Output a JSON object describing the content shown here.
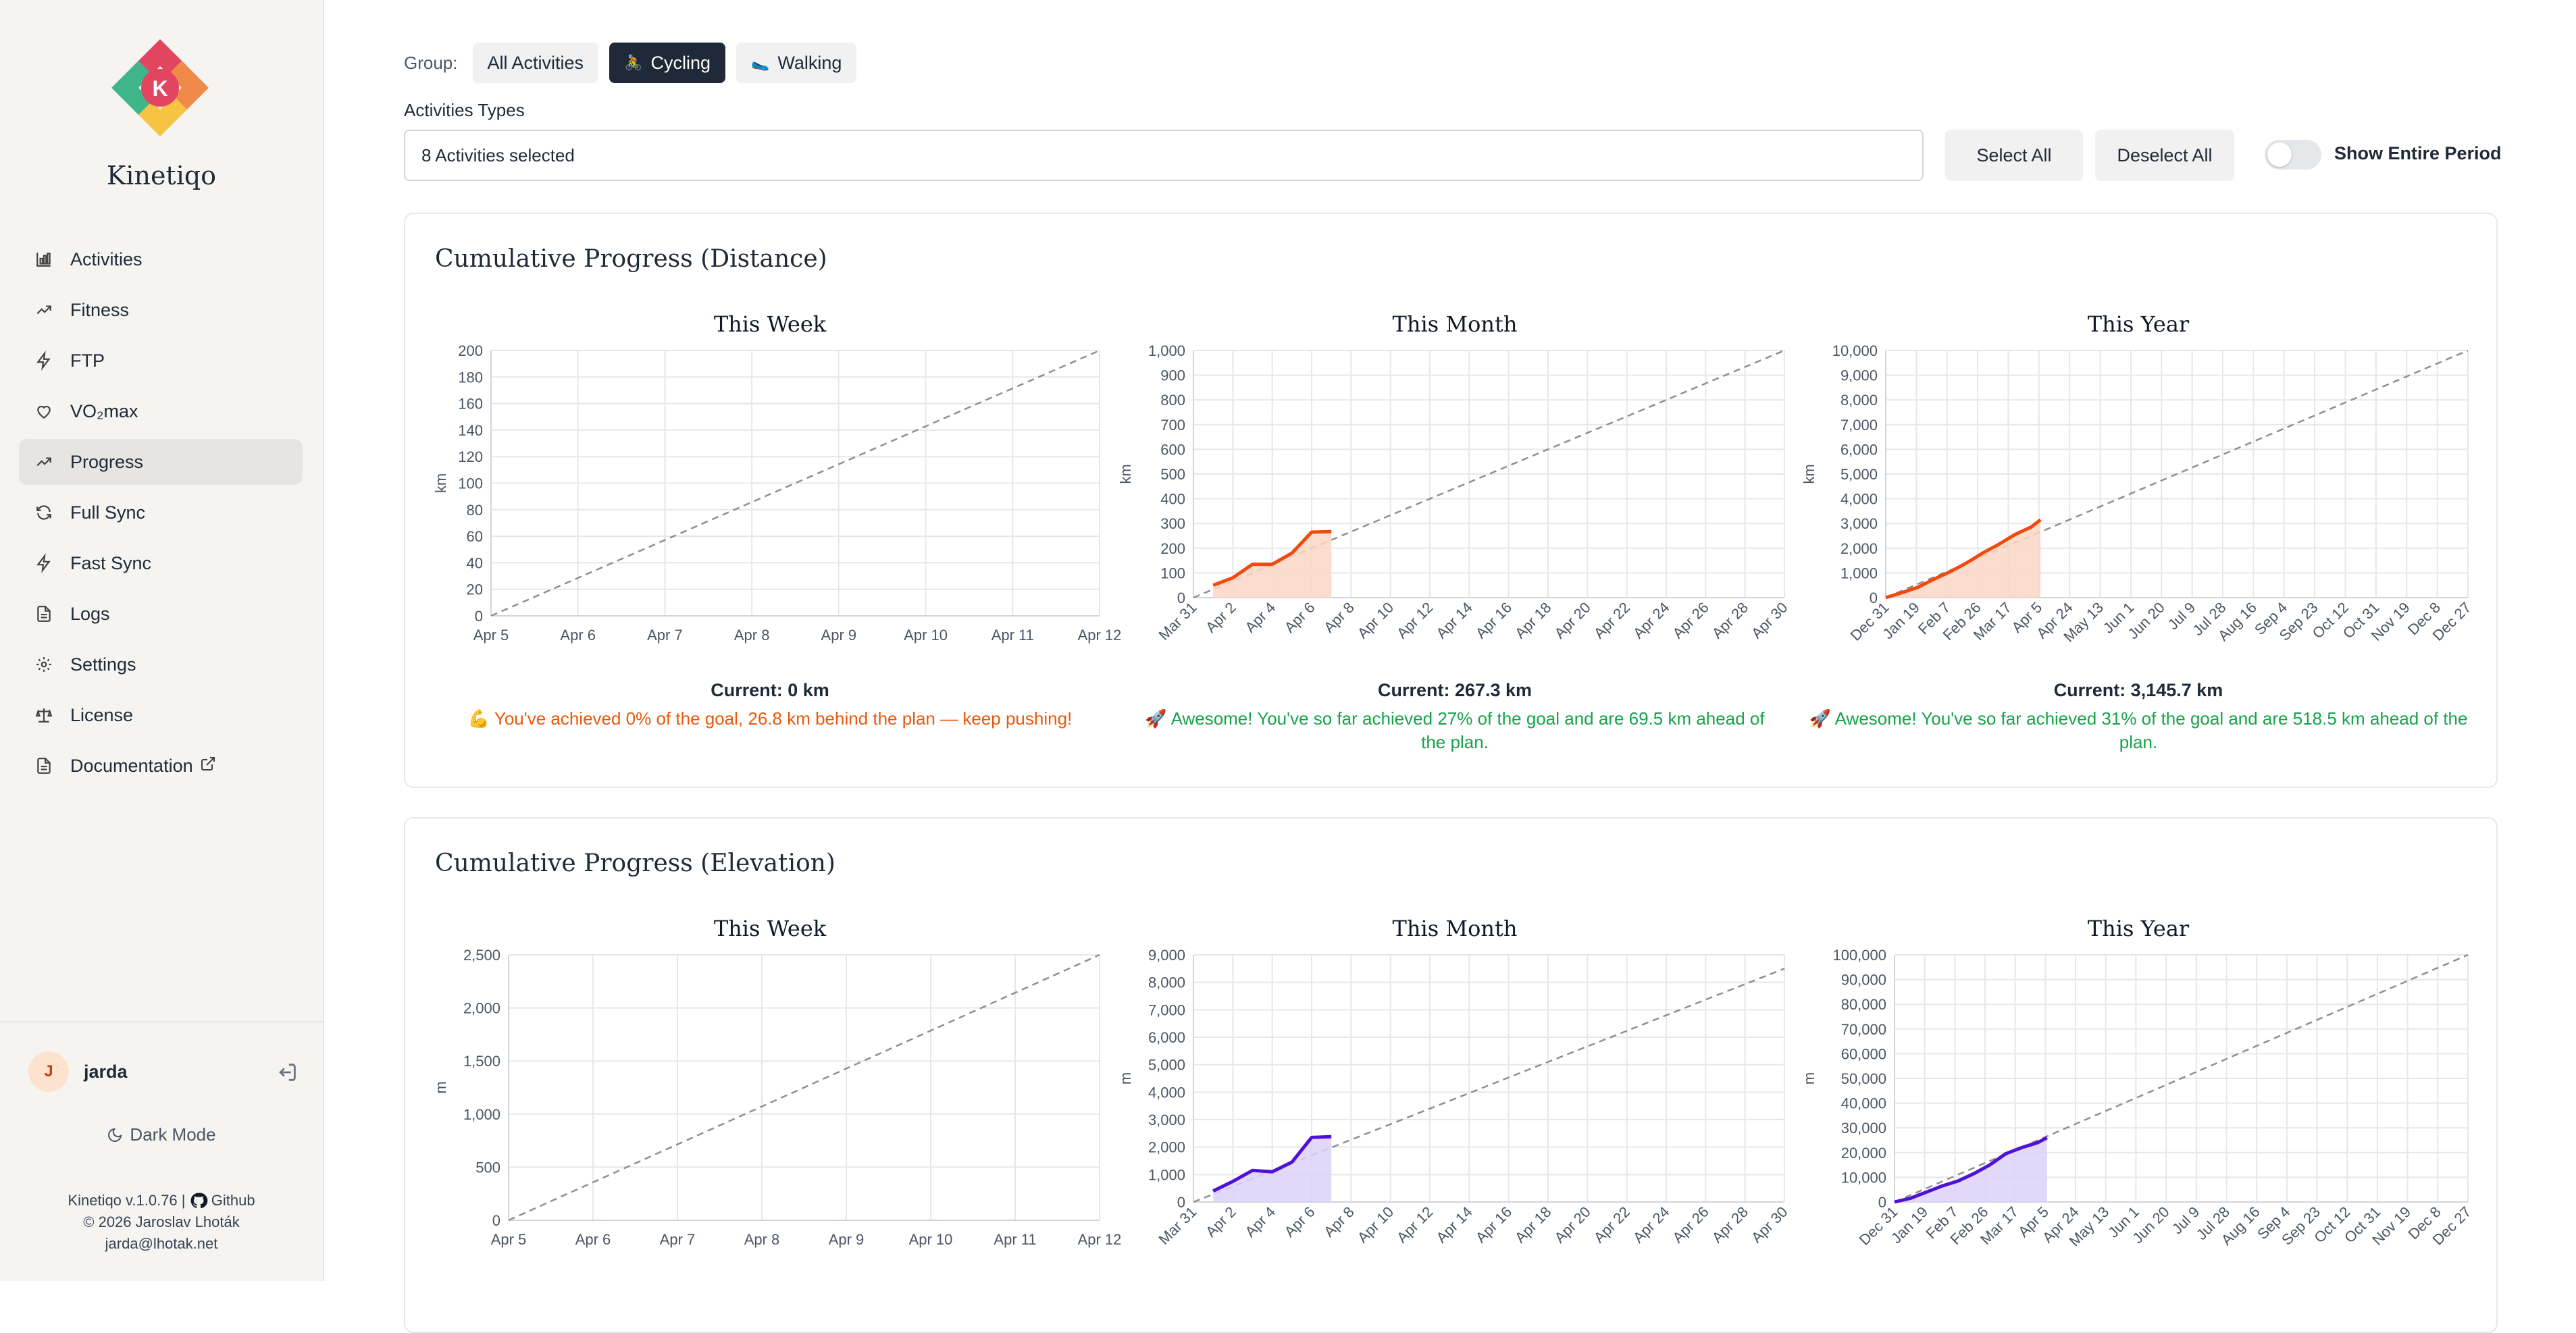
{
  "sidebar": {
    "brand": "Kinetiqo",
    "items": [
      {
        "label": "Activities",
        "icon": "bar-chart-icon"
      },
      {
        "label": "Fitness",
        "icon": "trending-up-icon"
      },
      {
        "label": "FTP",
        "icon": "zap-icon"
      },
      {
        "label": "VO₂max",
        "icon": "heart-icon"
      },
      {
        "label": "Progress",
        "icon": "trending-up-icon",
        "active": true
      },
      {
        "label": "Full Sync",
        "icon": "refresh-icon"
      },
      {
        "label": "Fast Sync",
        "icon": "zap-icon"
      },
      {
        "label": "Logs",
        "icon": "file-icon"
      },
      {
        "label": "Settings",
        "icon": "gear-icon"
      },
      {
        "label": "License",
        "icon": "scale-icon"
      },
      {
        "label": "Documentation",
        "icon": "file-icon"
      }
    ],
    "user": {
      "initial": "J",
      "name": "jarda"
    },
    "dark_mode": "Dark Mode",
    "footer": {
      "version": "Kinetiqo v.1.0.76 |",
      "github": "Github",
      "copyright": "© 2026 Jaroslav Lhoták",
      "email": "jarda@lhotak.net"
    }
  },
  "filters": {
    "group_label": "Group:",
    "groups": [
      {
        "label": "All Activities",
        "active": false,
        "emoji": ""
      },
      {
        "label": "Cycling",
        "active": true,
        "emoji": "🚴"
      },
      {
        "label": "Walking",
        "active": false,
        "emoji": "🥿"
      }
    ],
    "types_label": "Activities Types",
    "types_value": "8 Activities selected",
    "select_all": "Select All",
    "deselect_all": "Deselect All",
    "show_entire_period": "Show Entire Period"
  },
  "sections": [
    {
      "title": "Cumulative Progress (Distance)",
      "panels": [
        {
          "title": "This Week",
          "current": "Current: 0 km",
          "message": "💪 You've achieved 0% of the goal, 26.8 km behind the plan — keep pushing!",
          "status": "behind"
        },
        {
          "title": "This Month",
          "current": "Current: 267.3 km",
          "message": "🚀 Awesome! You've so far achieved 27% of the goal and are 69.5 km ahead of the plan.",
          "status": "ahead"
        },
        {
          "title": "This Year",
          "current": "Current: 3,145.7 km",
          "message": "🚀 Awesome! You've so far achieved 31% of the goal and are 518.5 km ahead of the plan.",
          "status": "ahead"
        }
      ]
    },
    {
      "title": "Cumulative Progress (Elevation)",
      "panels": [
        {
          "title": "This Week"
        },
        {
          "title": "This Month"
        },
        {
          "title": "This Year"
        }
      ]
    }
  ],
  "colors": {
    "distance": "#f04a0e",
    "distance_fill": "#fbd6c4",
    "elevation": "#4f11d8",
    "elevation_fill": "#ddd2f8",
    "plan": "#8f8f8f",
    "grid": "#e5e7eb"
  },
  "chart_data": [
    {
      "id": "dist-week",
      "type": "line",
      "ylabel": "km",
      "ylim": [
        0,
        200
      ],
      "yticks": [
        "0",
        "20",
        "40",
        "60",
        "80",
        "100",
        "120",
        "140",
        "160",
        "180",
        "200"
      ],
      "xticks": [
        "Apr 5",
        "Apr 6",
        "Apr 7",
        "Apr 8",
        "Apr 9",
        "Apr 10",
        "Apr 11",
        "Apr 12"
      ],
      "rotated": false,
      "plan": [
        0,
        200
      ],
      "series": [],
      "grid": true
    },
    {
      "id": "dist-month",
      "type": "area",
      "ylabel": "km",
      "ylim": [
        0,
        1000
      ],
      "yticks": [
        "0",
        "100",
        "200",
        "300",
        "400",
        "500",
        "600",
        "700",
        "800",
        "900",
        "1,000"
      ],
      "xticks": [
        "Mar 31",
        "Apr 2",
        "Apr 4",
        "Apr 6",
        "Apr 8",
        "Apr 10",
        "Apr 12",
        "Apr 14",
        "Apr 16",
        "Apr 18",
        "Apr 20",
        "Apr 22",
        "Apr 24",
        "Apr 26",
        "Apr 28",
        "Apr 30"
      ],
      "rotated": true,
      "plan": [
        0,
        1000
      ],
      "series": [
        {
          "x": [
            1,
            2,
            3,
            4,
            5,
            6,
            7
          ],
          "y": [
            50,
            80,
            135,
            135,
            180,
            265,
            267
          ]
        }
      ],
      "grid": true
    },
    {
      "id": "dist-year",
      "type": "area",
      "ylabel": "km",
      "ylim": [
        0,
        10000
      ],
      "yticks": [
        "0",
        "1,000",
        "2,000",
        "3,000",
        "4,000",
        "5,000",
        "6,000",
        "7,000",
        "8,000",
        "9,000",
        "10,000"
      ],
      "xticks": [
        "Dec 31",
        "Jan 19",
        "Feb 7",
        "Feb 26",
        "Mar 17",
        "Apr 5",
        "Apr 24",
        "May 13",
        "Jun 1",
        "Jun 20",
        "Jul 9",
        "Jul 28",
        "Aug 16",
        "Sep 4",
        "Sep 23",
        "Oct 12",
        "Oct 31",
        "Nov 19",
        "Dec 8",
        "Dec 27"
      ],
      "rotated": true,
      "plan": [
        0,
        10000
      ],
      "series": [
        {
          "x": [
            0,
            10,
            20,
            30,
            40,
            50,
            60,
            70,
            80,
            90,
            96
          ],
          "y": [
            0,
            200,
            420,
            750,
            1050,
            1400,
            1800,
            2150,
            2550,
            2850,
            3146
          ]
        }
      ],
      "grid": true
    },
    {
      "id": "elev-week",
      "type": "line",
      "ylabel": "m",
      "ylim": [
        0,
        2500
      ],
      "yticks": [
        "0",
        "500",
        "1,000",
        "1,500",
        "2,000",
        "2,500"
      ],
      "xticks": [
        "Apr 5",
        "Apr 6",
        "Apr 7",
        "Apr 8",
        "Apr 9",
        "Apr 10",
        "Apr 11",
        "Apr 12"
      ],
      "rotated": false,
      "plan": [
        0,
        2500
      ],
      "series": [],
      "grid": true
    },
    {
      "id": "elev-month",
      "type": "area",
      "ylabel": "m",
      "ylim": [
        0,
        9000
      ],
      "yticks": [
        "0",
        "1,000",
        "2,000",
        "3,000",
        "4,000",
        "5,000",
        "6,000",
        "7,000",
        "8,000",
        "9,000"
      ],
      "xticks": [
        "Mar 31",
        "Apr 2",
        "Apr 4",
        "Apr 6",
        "Apr 8",
        "Apr 10",
        "Apr 12",
        "Apr 14",
        "Apr 16",
        "Apr 18",
        "Apr 20",
        "Apr 22",
        "Apr 24",
        "Apr 26",
        "Apr 28",
        "Apr 30"
      ],
      "rotated": true,
      "plan": [
        0,
        8500
      ],
      "series": [
        {
          "x": [
            1,
            2,
            3,
            4,
            5,
            6,
            7
          ],
          "y": [
            400,
            750,
            1150,
            1100,
            1450,
            2350,
            2380
          ]
        }
      ],
      "grid": true
    },
    {
      "id": "elev-year",
      "type": "area",
      "ylabel": "m",
      "ylim": [
        0,
        100000
      ],
      "yticks": [
        "0",
        "10,000",
        "20,000",
        "30,000",
        "40,000",
        "50,000",
        "60,000",
        "70,000",
        "80,000",
        "90,000",
        "100,000"
      ],
      "xticks": [
        "Dec 31",
        "Jan 19",
        "Feb 7",
        "Feb 26",
        "Mar 17",
        "Apr 5",
        "Apr 24",
        "May 13",
        "Jun 1",
        "Jun 20",
        "Jul 9",
        "Jul 28",
        "Aug 16",
        "Sep 4",
        "Sep 23",
        "Oct 12",
        "Oct 31",
        "Nov 19",
        "Dec 8",
        "Dec 27"
      ],
      "rotated": true,
      "plan": [
        0,
        100000
      ],
      "series": [
        {
          "x": [
            0,
            10,
            20,
            30,
            40,
            50,
            60,
            70,
            80,
            90,
            96
          ],
          "y": [
            0,
            1500,
            4000,
            6500,
            8500,
            11500,
            15000,
            19500,
            22000,
            24000,
            26000
          ]
        }
      ],
      "grid": true
    }
  ]
}
